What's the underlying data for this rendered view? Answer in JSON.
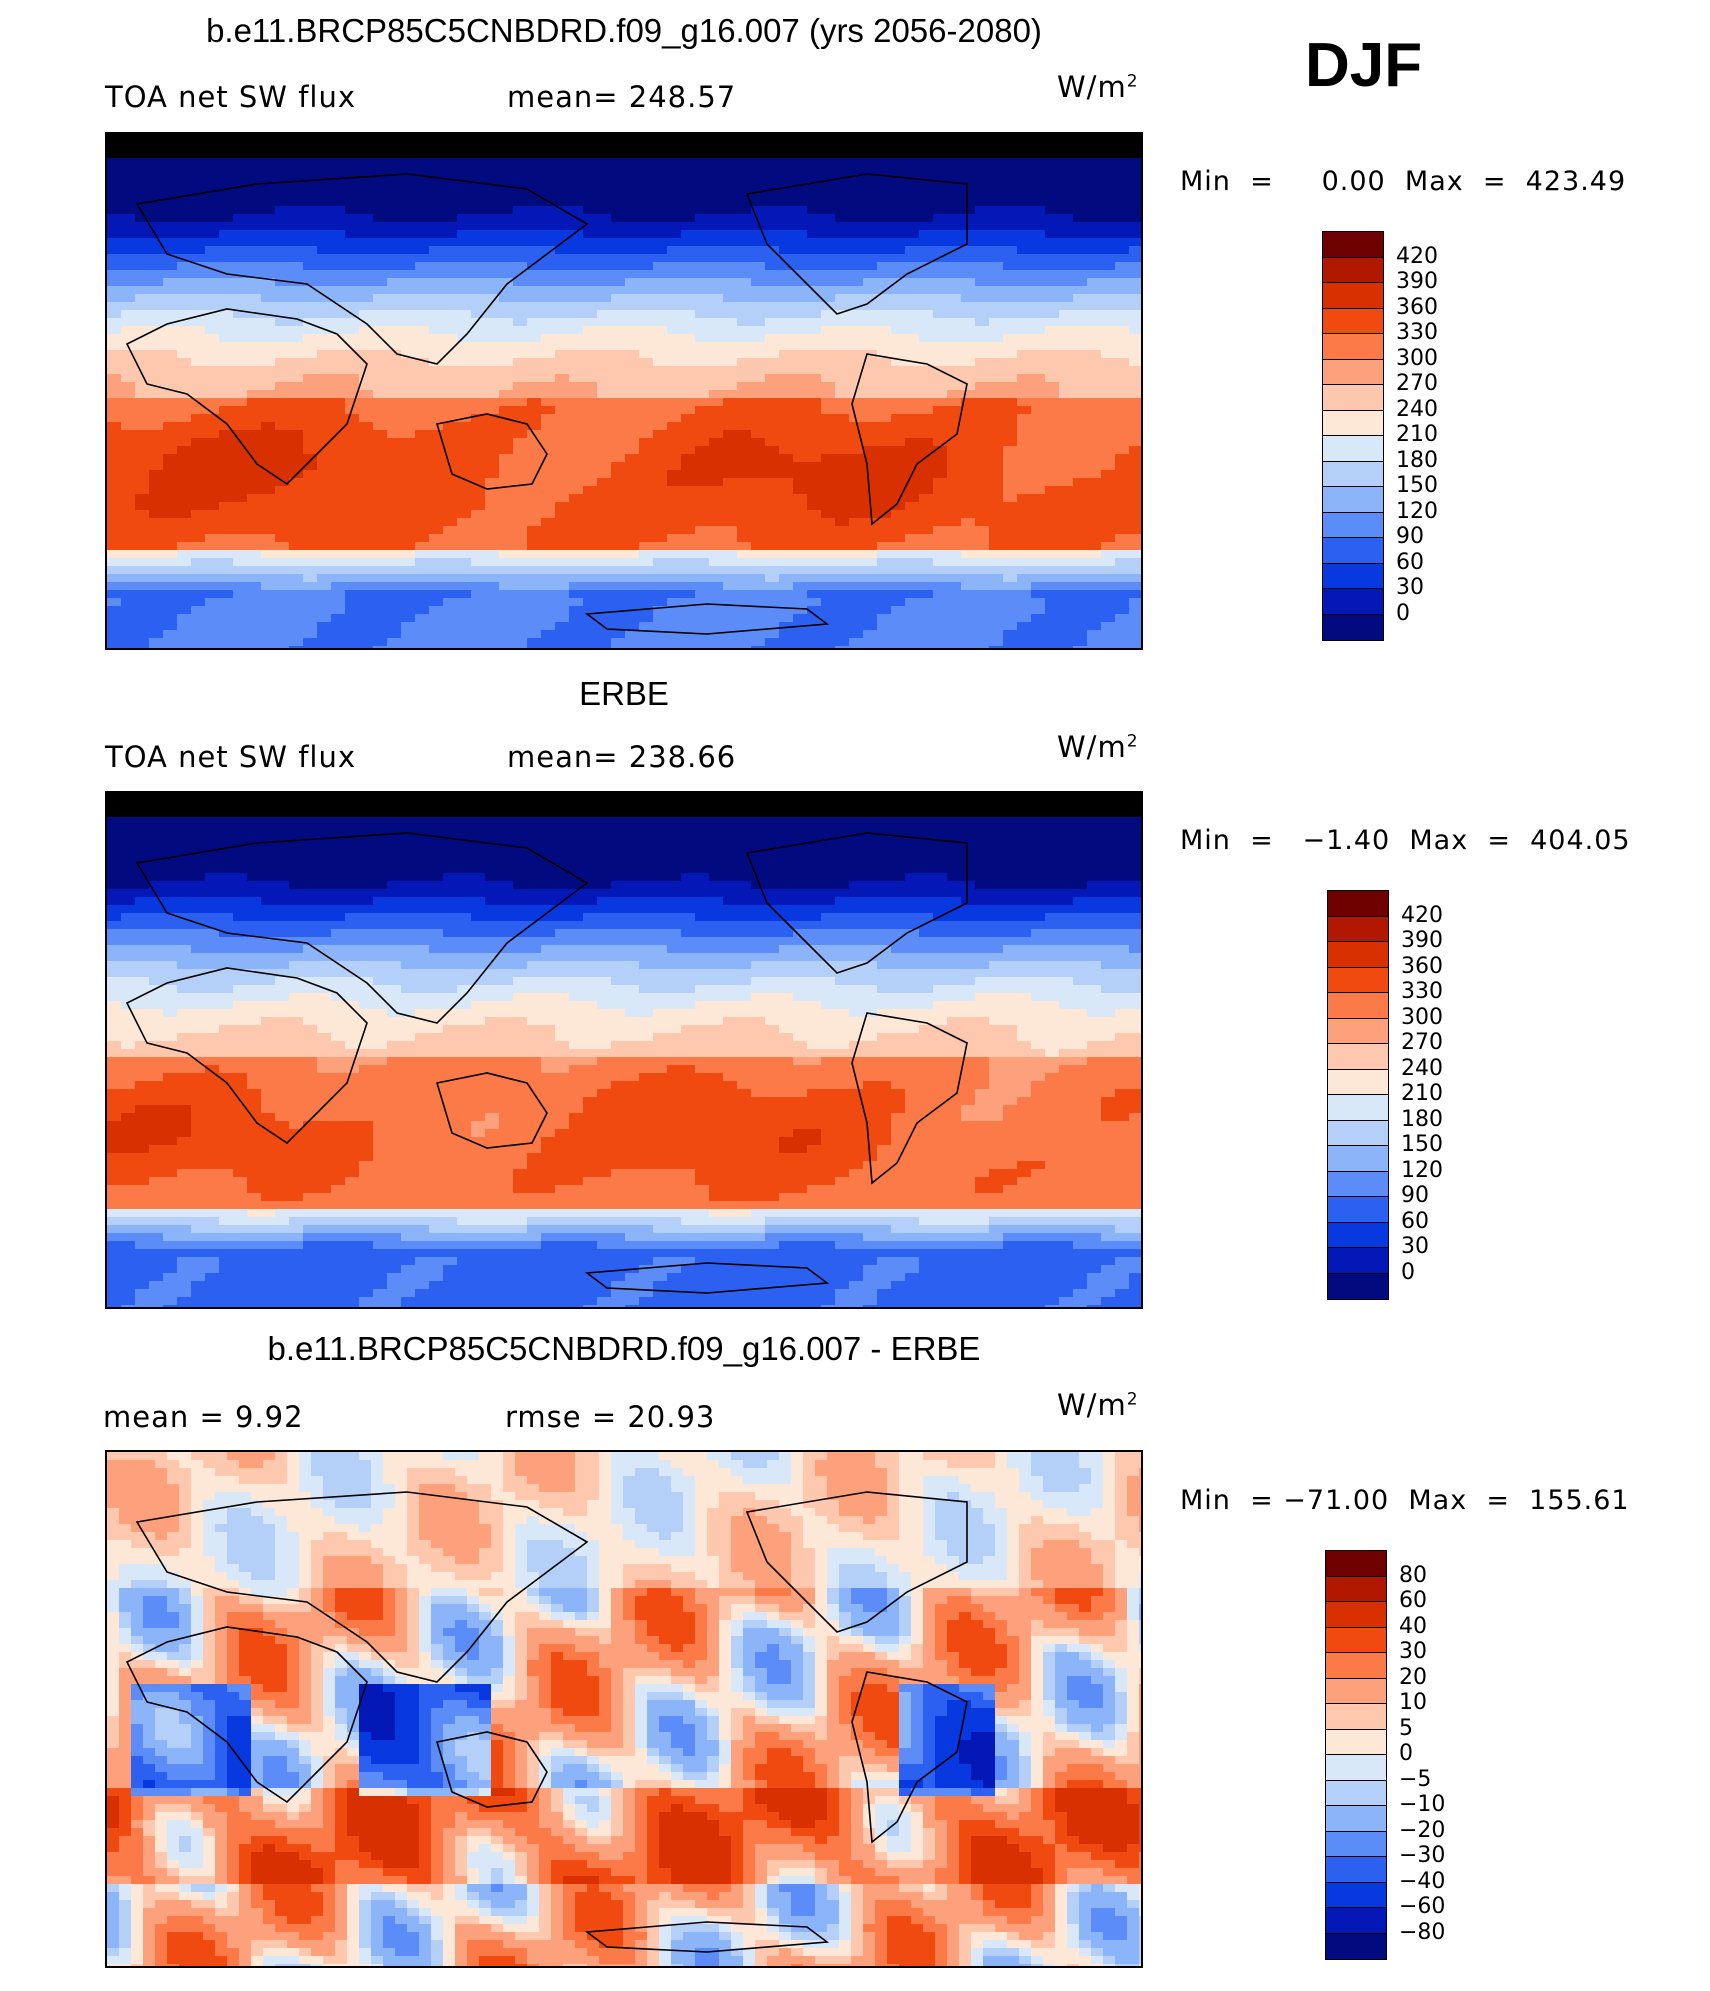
{
  "season": "DJF",
  "panels": [
    {
      "title": "b.e11.BRCP85C5CNBDRD.f09_g16.007 (yrs 2056-2080)",
      "left_label": "TOA net SW flux",
      "stat_label": "mean=  248.57",
      "unit": "W/m",
      "unit_sup": "2",
      "minmax": "Min  =     0.00  Max  =  423.49"
    },
    {
      "title": "ERBE",
      "left_label": "TOA net SW flux",
      "stat_label": "mean=  238.66",
      "unit": "W/m",
      "unit_sup": "2",
      "minmax": "Min  =   −1.40  Max  =  404.05"
    },
    {
      "title": "b.e11.BRCP85C5CNBDRD.f09_g16.007 - ERBE",
      "left_label": "mean  =     9.92",
      "stat_label": "rmse  =    20.93",
      "unit": "W/m",
      "unit_sup": "2",
      "minmax": "Min  = −71.00  Max  =  155.61"
    }
  ],
  "chart_data": [
    {
      "type": "heatmap",
      "title": "b.e11.BRCP85C5CNBDRD.f09_g16.007 (yrs 2056-2080)",
      "variable": "TOA net SW flux",
      "units": "W/m2",
      "mean": 248.57,
      "min": 0.0,
      "max": 423.49,
      "levels": [
        420,
        390,
        360,
        330,
        300,
        270,
        240,
        210,
        180,
        150,
        120,
        90,
        60,
        30,
        0
      ],
      "colors": [
        "#6e0000",
        "#b21800",
        "#d83000",
        "#f04a10",
        "#fc7a48",
        "#fda07c",
        "#fdc8ae",
        "#fde8d8",
        "#d8e8f8",
        "#b4d0f8",
        "#8cb4f8",
        "#5c8cf8",
        "#2c60f0",
        "#0838e0",
        "#0418b8",
        "#020a80"
      ]
    },
    {
      "type": "heatmap",
      "title": "ERBE",
      "variable": "TOA net SW flux",
      "units": "W/m2",
      "mean": 238.66,
      "min": -1.4,
      "max": 404.05,
      "levels": [
        420,
        390,
        360,
        330,
        300,
        270,
        240,
        210,
        180,
        150,
        120,
        90,
        60,
        30,
        0
      ],
      "colors": [
        "#6e0000",
        "#b21800",
        "#d83000",
        "#f04a10",
        "#fc7a48",
        "#fda07c",
        "#fdc8ae",
        "#fde8d8",
        "#d8e8f8",
        "#b4d0f8",
        "#8cb4f8",
        "#5c8cf8",
        "#2c60f0",
        "#0838e0",
        "#0418b8",
        "#020a80"
      ]
    },
    {
      "type": "heatmap",
      "title": "b.e11.BRCP85C5CNBDRD.f09_g16.007 - ERBE",
      "units": "W/m2",
      "mean": 9.92,
      "rmse": 20.93,
      "min": -71.0,
      "max": 155.61,
      "levels": [
        "80",
        "60",
        "40",
        "30",
        "20",
        "10",
        "5",
        "0",
        "−5",
        "−10",
        "−20",
        "−30",
        "−40",
        "−60",
        "−80"
      ],
      "colors": [
        "#6e0000",
        "#b21800",
        "#d83000",
        "#f04a10",
        "#fc7a48",
        "#fda07c",
        "#fdc8ae",
        "#fde8d8",
        "#d8e8f8",
        "#b4d0f8",
        "#8cb4f8",
        "#5c8cf8",
        "#2c60f0",
        "#0838e0",
        "#0418b8",
        "#020a80"
      ]
    }
  ]
}
